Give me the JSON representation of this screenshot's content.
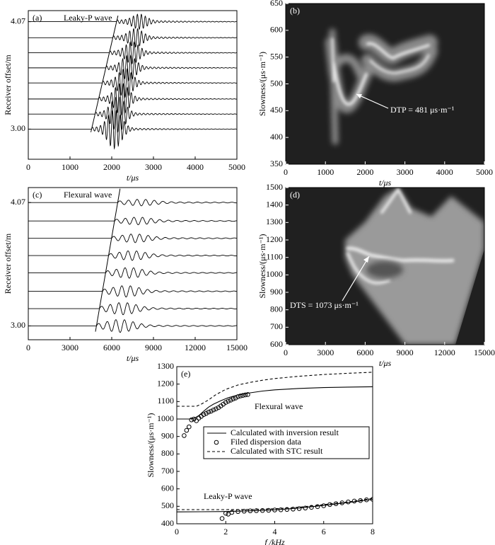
{
  "chart_data": [
    {
      "type": "waveform",
      "label": "(a)",
      "title": "Leaky-P wave",
      "xlabel": "t/μs",
      "ylabel": "Receiver offset/m",
      "xlim": [
        0,
        5000
      ],
      "xticks": [
        0,
        1000,
        2000,
        3000,
        4000,
        5000
      ],
      "ylim": [
        2.7,
        4.18
      ],
      "yticks": [
        {
          "value": 3,
          "label": "3.00"
        },
        4.07
      ],
      "offsets": [
        3,
        3.15,
        3.3,
        3.46,
        3.61,
        3.76,
        3.91,
        4.07
      ],
      "moveout": {
        "x": [
          1500,
          2150
        ],
        "y": [
          2.97,
          4.13
        ]
      },
      "color": "#000000"
    },
    {
      "type": "heatmap",
      "label": "(b)",
      "xlabel": "t/μs",
      "ylabel": "Slowness/(μs·m⁻¹)",
      "xlim": [
        0,
        5000
      ],
      "xticks": [
        0,
        1000,
        2000,
        3000,
        4000,
        5000
      ],
      "ylim": [
        350,
        650
      ],
      "yticks": [
        350,
        400,
        450,
        500,
        550,
        600,
        650
      ],
      "annotations": [
        "DTP = 481 μs·m⁻¹"
      ]
    },
    {
      "type": "waveform",
      "label": "(c)",
      "title": "Flexural wave",
      "xlabel": "t/μs",
      "ylabel": "Receiver offset/m",
      "xlim": [
        0,
        15000
      ],
      "xticks": [
        0,
        3000,
        6000,
        9000,
        12000,
        15000
      ],
      "ylim": [
        2.88,
        4.2
      ],
      "yticks": [
        {
          "value": 3,
          "label": "3.00"
        },
        4.07
      ],
      "offsets": [
        3,
        3.15,
        3.3,
        3.46,
        3.61,
        3.76,
        3.91,
        4.07
      ],
      "moveout": {
        "x": [
          4830,
          6600
        ],
        "y": [
          2.95,
          4.19
        ]
      },
      "color": "#000000"
    },
    {
      "type": "heatmap",
      "label": "(d)",
      "xlabel": "t/μs",
      "ylabel": "Slowness/(μs·m⁻¹)",
      "xlim": [
        0,
        15000
      ],
      "xticks": [
        0,
        3000,
        6000,
        9000,
        12000,
        15000
      ],
      "ylim": [
        600,
        1500
      ],
      "yticks": [
        600,
        700,
        800,
        900,
        1000,
        1100,
        1200,
        1300,
        1400,
        1500
      ],
      "annotations": [
        "DTS = 1073 μs·m⁻¹"
      ]
    },
    {
      "type": "line",
      "label": "(e)",
      "xlabel": "f /kHz",
      "ylabel": "Slowness/(μs·m⁻¹)",
      "xlim": [
        0,
        8
      ],
      "xticks": [
        0,
        2,
        4,
        6,
        8
      ],
      "ylim": [
        400,
        1300
      ],
      "yticks": [
        400,
        500,
        600,
        700,
        800,
        900,
        1000,
        1100,
        1200,
        1300
      ],
      "annotations": [
        "Flexural wave",
        "Leaky-P wave"
      ],
      "series": [
        {
          "name": "Calculated with inversion result",
          "style": "solid",
          "color": "#000000",
          "x": [
            0,
            0.3,
            0.5,
            0.7,
            0.9,
            1.1,
            1.3,
            1.5,
            1.8,
            2.1,
            2.5,
            3,
            3.5,
            4,
            5,
            6,
            7,
            8,
            null,
            0,
            1,
            2,
            3,
            4,
            5,
            6,
            7,
            8
          ],
          "values": [
            1000,
            1000,
            1000,
            1003,
            1020,
            1045,
            1068,
            1085,
            1105,
            1122,
            1138,
            1150,
            1160,
            1167,
            1175,
            1180,
            1183,
            1185,
            null,
            468,
            469,
            470,
            474,
            480,
            490,
            505,
            522,
            540
          ]
        },
        {
          "name": "Filed dispersion data",
          "style": "marker",
          "color": "#000000",
          "x": [
            0.3,
            0.4,
            0.5,
            0.6,
            0.7,
            0.8,
            0.9,
            1.0,
            1.1,
            1.2,
            1.3,
            1.4,
            1.5,
            1.6,
            1.7,
            1.8,
            1.9,
            2.0,
            2.1,
            2.2,
            2.3,
            2.4,
            2.5,
            2.6,
            2.7,
            2.8,
            2.9,
            1.85,
            2.0,
            2.1,
            2.25,
            2.5,
            2.75,
            3,
            3.25,
            3.5,
            3.75,
            4,
            4.25,
            4.5,
            4.75,
            5,
            5.25,
            5.5,
            5.75,
            6,
            6.25,
            6.5,
            6.75,
            7,
            7.25,
            7.5,
            7.75,
            8
          ],
          "values": [
            905,
            935,
            955,
            995,
            1000,
            990,
            1005,
            1015,
            1025,
            1032,
            1040,
            1045,
            1052,
            1058,
            1065,
            1075,
            1085,
            1095,
            1102,
            1108,
            1115,
            1120,
            1128,
            1132,
            1135,
            1138,
            1140,
            430,
            460,
            455,
            465,
            470,
            472,
            474,
            475,
            476,
            477,
            479,
            480,
            482,
            484,
            487,
            490,
            494,
            498,
            503,
            510,
            515,
            520,
            525,
            530,
            533,
            537,
            540
          ]
        },
        {
          "name": "Calculated with STC result",
          "style": "dashed",
          "color": "#000000",
          "x": [
            0,
            0.8,
            1,
            1.3,
            1.6,
            2,
            2.5,
            3,
            3.5,
            4,
            5,
            6,
            7,
            8,
            null,
            0,
            2,
            3,
            4,
            5,
            6,
            7,
            8
          ],
          "values": [
            1073,
            1073,
            1085,
            1110,
            1140,
            1170,
            1195,
            1210,
            1222,
            1232,
            1245,
            1255,
            1262,
            1268,
            null,
            481,
            481,
            482,
            486,
            495,
            510,
            525,
            545
          ]
        }
      ]
    }
  ]
}
